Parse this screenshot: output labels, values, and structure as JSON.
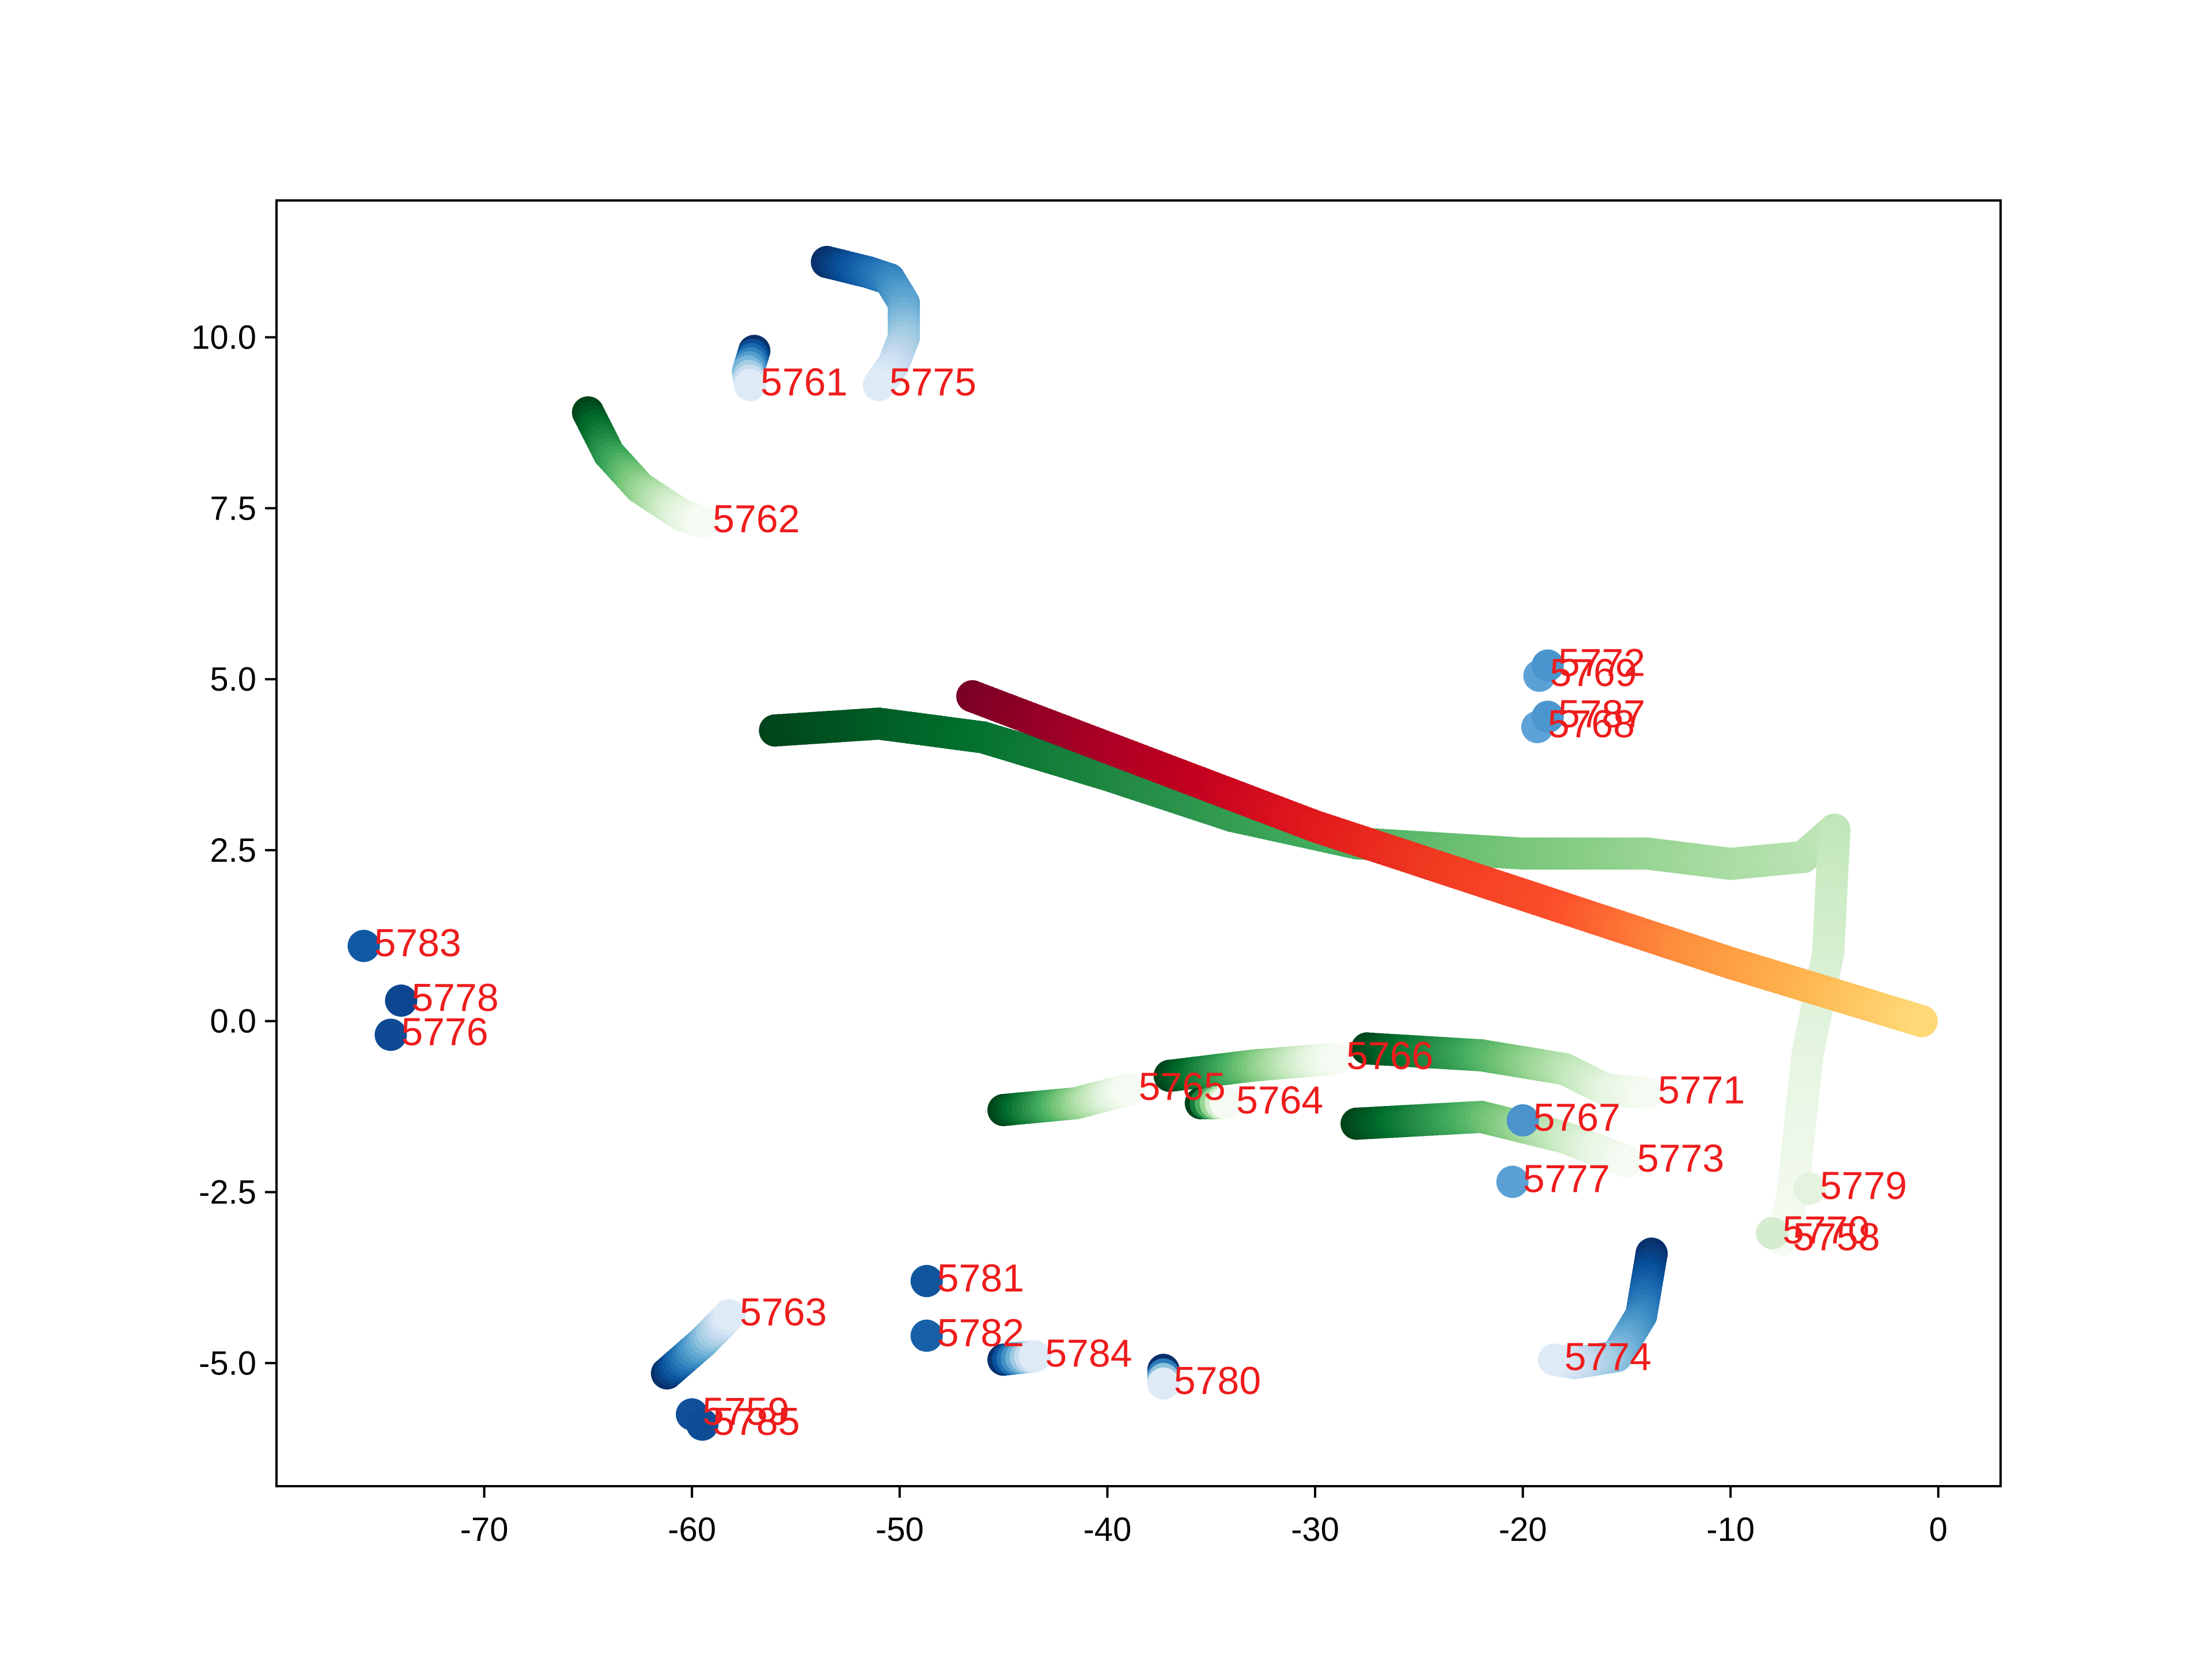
{
  "chart_data": {
    "type": "scatter",
    "title": "",
    "xlabel": "",
    "ylabel": "",
    "xlim": [
      -80,
      3
    ],
    "ylim": [
      -6.8,
      12
    ],
    "grid": false,
    "legend": "none",
    "x_ticks": [
      -70,
      -60,
      -50,
      -40,
      -30,
      -20,
      -10,
      0
    ],
    "x_tick_labels": [
      "-70",
      "-60",
      "-50",
      "-40",
      "-30",
      "-20",
      "-10",
      "0"
    ],
    "y_ticks": [
      -5.0,
      -2.5,
      0.0,
      2.5,
      5.0,
      7.5,
      10.0
    ],
    "y_tick_labels": [
      "-5.0",
      "-2.5",
      "0.0",
      "2.5",
      "5.0",
      "7.5",
      "10.0"
    ],
    "label_color": "#ee1c1c",
    "series": [
      {
        "label": "5758",
        "colormap": "green",
        "points": [
          [
            -56,
            4.25
          ],
          [
            -51,
            4.35
          ],
          [
            -46,
            4.15
          ],
          [
            -40,
            3.6
          ],
          [
            -34,
            3.0
          ],
          [
            -28,
            2.6
          ],
          [
            -20,
            2.45
          ],
          [
            -14,
            2.45
          ],
          [
            -10,
            2.3
          ],
          [
            -6.5,
            2.4
          ],
          [
            -5,
            2.8
          ],
          [
            -5.3,
            1.0
          ],
          [
            -6.3,
            -0.5
          ],
          [
            -7,
            -2.5
          ],
          [
            -7.5,
            -3.2
          ]
        ]
      },
      {
        "label": "5783",
        "colormap": "red",
        "points": [
          [
            -46.5,
            4.75
          ],
          [
            -40,
            4.0
          ],
          [
            -30,
            2.85
          ],
          [
            -20,
            1.85
          ],
          [
            -10,
            0.85
          ],
          [
            -0.8,
            0.0
          ]
        ]
      },
      {
        "label": "5775",
        "colormap": "blue",
        "points": [
          [
            -53.5,
            11.1
          ],
          [
            -51.5,
            10.95
          ],
          [
            -50.5,
            10.85
          ],
          [
            -49.8,
            10.5
          ],
          [
            -49.8,
            10.0
          ],
          [
            -50.3,
            9.6
          ],
          [
            -51,
            9.3
          ]
        ]
      },
      {
        "label": "5761",
        "colormap": "blue",
        "points": [
          [
            -57,
            9.8
          ],
          [
            -57.3,
            9.5
          ],
          [
            -57.2,
            9.3
          ]
        ]
      },
      {
        "label": "5762",
        "colormap": "green",
        "points": [
          [
            -65,
            8.9
          ],
          [
            -64,
            8.3
          ],
          [
            -62.5,
            7.8
          ],
          [
            -60.5,
            7.4
          ],
          [
            -59.5,
            7.3
          ]
        ]
      },
      {
        "label": "5765",
        "colormap": "green",
        "points": [
          [
            -45,
            -1.3
          ],
          [
            -41.5,
            -1.2
          ],
          [
            -39,
            -1.0
          ]
        ]
      },
      {
        "label": "5766",
        "colormap": "green",
        "points": [
          [
            -37,
            -0.8
          ],
          [
            -33,
            -0.65
          ],
          [
            -29,
            -0.55
          ]
        ]
      },
      {
        "label": "5764",
        "colormap": "green",
        "points": [
          [
            -35.5,
            -1.2
          ],
          [
            -34.3,
            -1.2
          ]
        ]
      },
      {
        "label": "5771",
        "colormap": "green",
        "points": [
          [
            -27.5,
            -0.4
          ],
          [
            -22,
            -0.5
          ],
          [
            -18,
            -0.7
          ],
          [
            -16,
            -1.0
          ],
          [
            -14,
            -1.05
          ]
        ]
      },
      {
        "label": "5773",
        "colormap": "green",
        "points": [
          [
            -28,
            -1.5
          ],
          [
            -22,
            -1.4
          ],
          [
            -18,
            -1.7
          ],
          [
            -15,
            -2.05
          ]
        ]
      },
      {
        "label": "5774",
        "colormap": "blue",
        "points": [
          [
            -13.8,
            -3.4
          ],
          [
            -14.3,
            -4.3
          ],
          [
            -15.5,
            -4.9
          ],
          [
            -17.5,
            -5.0
          ],
          [
            -18.5,
            -4.95
          ]
        ]
      },
      {
        "label": "5763",
        "colormap": "blue",
        "points": [
          [
            -61.2,
            -5.15
          ],
          [
            -59.5,
            -4.7
          ],
          [
            -58.2,
            -4.3
          ]
        ]
      },
      {
        "label": "5780",
        "colormap": "blue",
        "points": [
          [
            -37.3,
            -5.1
          ],
          [
            -37.3,
            -5.3
          ]
        ]
      },
      {
        "label": "5784",
        "colormap": "blue",
        "points": [
          [
            -45,
            -4.95
          ],
          [
            -43.5,
            -4.9
          ]
        ]
      }
    ],
    "points": [
      {
        "label": "5782",
        "x": -48.7,
        "y": -4.6,
        "shade": "#1760a8"
      },
      {
        "label": "5781",
        "x": -48.7,
        "y": -3.8,
        "shade": "#12559f"
      },
      {
        "label": "5767",
        "x": -20,
        "y": -1.45,
        "shade": "#4a93cc"
      },
      {
        "label": "5777",
        "x": -20.5,
        "y": -2.35,
        "shade": "#5aa0d4"
      },
      {
        "label": "5779",
        "x": -6.2,
        "y": -2.45,
        "shade": "#e4f3df"
      },
      {
        "label": "5770",
        "x": -8,
        "y": -3.1,
        "shade": "#d5ecd0"
      },
      {
        "label": "5776",
        "x": -74.5,
        "y": -0.2,
        "shade": "#0d4a93"
      },
      {
        "label": "5778",
        "x": -74,
        "y": 0.3,
        "shade": "#0c4690"
      },
      {
        "label": "5783",
        "x": -75.8,
        "y": 1.1,
        "shade": "#1159a4"
      },
      {
        "label": "5769",
        "x": -19.2,
        "y": 5.05,
        "shade": "#5ba1d6"
      },
      {
        "label": "5772",
        "x": -18.8,
        "y": 5.2,
        "shade": "#4a95cd"
      },
      {
        "label": "5768",
        "x": -19.3,
        "y": 4.3,
        "shade": "#5ea3d8"
      },
      {
        "label": "5787",
        "x": -18.8,
        "y": 4.45,
        "shade": "#4b96ce"
      },
      {
        "label": "5759",
        "x": -60,
        "y": -5.75,
        "shade": "#114f99"
      },
      {
        "label": "5785",
        "x": -59.5,
        "y": -5.9,
        "shade": "#0f4c96"
      }
    ]
  }
}
